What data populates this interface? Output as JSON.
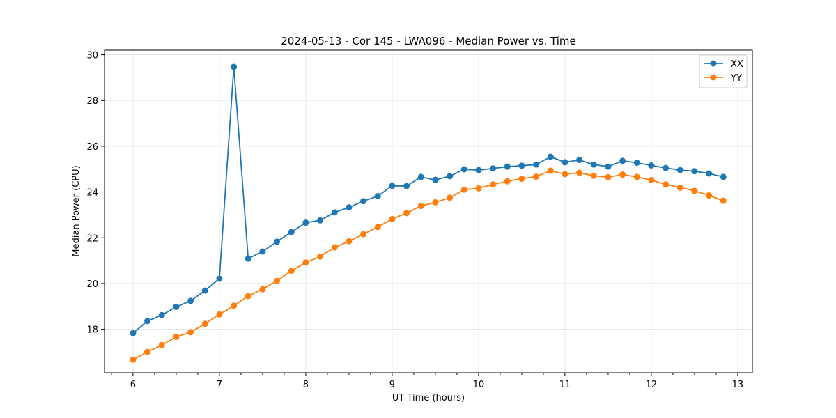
{
  "chart_data": {
    "type": "line",
    "title": "2024-05-13 - Cor 145 - LWA096 - Median Power vs. Time",
    "xlabel": "UT Time (hours)",
    "ylabel": "Median Power (CPU)",
    "xlim": [
      5.67,
      13.17
    ],
    "ylim": [
      16.1,
      30.2
    ],
    "xticks": [
      6,
      7,
      8,
      9,
      10,
      11,
      12,
      13
    ],
    "xtick_labels": [
      "6",
      "7",
      "8",
      "9",
      "10",
      "11",
      "12",
      "13"
    ],
    "xminor_step": 0.25,
    "yticks": [
      18,
      20,
      22,
      24,
      26,
      28,
      30
    ],
    "ytick_labels": [
      "18",
      "20",
      "22",
      "24",
      "26",
      "28",
      "30"
    ],
    "grid": true,
    "legend_position": "top-right",
    "x": [
      6.0,
      6.1667,
      6.3333,
      6.5,
      6.6667,
      6.8333,
      7.0,
      7.1667,
      7.3333,
      7.5,
      7.6667,
      7.8333,
      8.0,
      8.1667,
      8.3333,
      8.5,
      8.6667,
      8.8333,
      9.0,
      9.1667,
      9.3333,
      9.5,
      9.6667,
      9.8333,
      10.0,
      10.1667,
      10.3333,
      10.5,
      10.6667,
      10.8333,
      11.0,
      11.1667,
      11.3333,
      11.5,
      11.6667,
      11.8333,
      12.0,
      12.1667,
      12.3333,
      12.5,
      12.6667,
      12.8333
    ],
    "series": [
      {
        "name": "XX",
        "color": "#1f77b4",
        "values": [
          17.83,
          18.36,
          18.62,
          18.98,
          19.24,
          19.69,
          20.21,
          29.47,
          21.09,
          21.4,
          21.83,
          22.25,
          22.66,
          22.76,
          23.11,
          23.33,
          23.6,
          23.82,
          24.27,
          24.26,
          24.66,
          24.53,
          24.69,
          24.99,
          24.96,
          25.03,
          25.11,
          25.15,
          25.2,
          25.54,
          25.3,
          25.4,
          25.2,
          25.11,
          25.36,
          25.28,
          25.16,
          25.05,
          24.96,
          24.91,
          24.81,
          24.66
        ]
      },
      {
        "name": "YY",
        "color": "#ff7f0e",
        "values": [
          16.67,
          17.01,
          17.31,
          17.67,
          17.87,
          18.24,
          18.65,
          19.03,
          19.45,
          19.75,
          20.12,
          20.55,
          20.92,
          21.18,
          21.58,
          21.85,
          22.16,
          22.47,
          22.82,
          23.08,
          23.39,
          23.55,
          23.75,
          24.1,
          24.16,
          24.33,
          24.47,
          24.58,
          24.67,
          24.93,
          24.78,
          24.84,
          24.71,
          24.65,
          24.76,
          24.66,
          24.52,
          24.33,
          24.19,
          24.05,
          23.85,
          23.62
        ]
      }
    ]
  }
}
